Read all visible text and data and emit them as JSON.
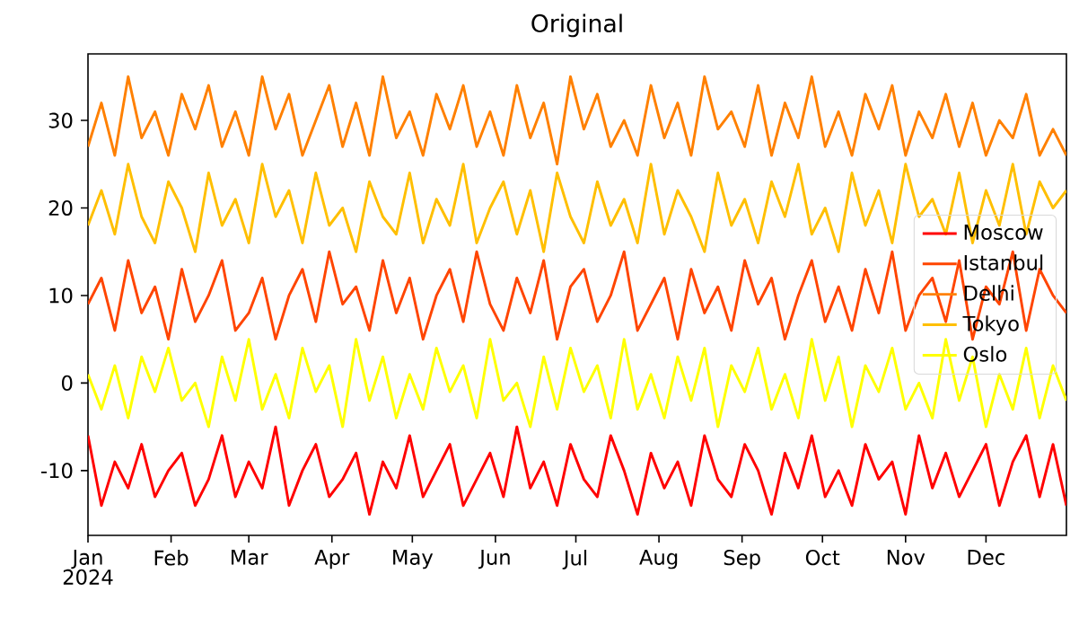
{
  "chart_data": {
    "type": "line",
    "title": "Original",
    "x": [
      "2024-01-01",
      "2024-01-06",
      "2024-01-11",
      "2024-01-16",
      "2024-01-21",
      "2024-01-26",
      "2024-01-31",
      "2024-02-05",
      "2024-02-10",
      "2024-02-15",
      "2024-02-20",
      "2024-02-25",
      "2024-03-01",
      "2024-03-06",
      "2024-03-11",
      "2024-03-16",
      "2024-03-21",
      "2024-03-26",
      "2024-03-31",
      "2024-04-05",
      "2024-04-10",
      "2024-04-15",
      "2024-04-20",
      "2024-04-25",
      "2024-04-30",
      "2024-05-05",
      "2024-05-10",
      "2024-05-15",
      "2024-05-20",
      "2024-05-25",
      "2024-05-30",
      "2024-06-04",
      "2024-06-09",
      "2024-06-14",
      "2024-06-19",
      "2024-06-24",
      "2024-06-29",
      "2024-07-04",
      "2024-07-09",
      "2024-07-14",
      "2024-07-19",
      "2024-07-24",
      "2024-07-29",
      "2024-08-03",
      "2024-08-08",
      "2024-08-13",
      "2024-08-18",
      "2024-08-23",
      "2024-08-28",
      "2024-09-02",
      "2024-09-07",
      "2024-09-12",
      "2024-09-17",
      "2024-09-22",
      "2024-09-27",
      "2024-10-02",
      "2024-10-07",
      "2024-10-12",
      "2024-10-17",
      "2024-10-22",
      "2024-10-27",
      "2024-11-01",
      "2024-11-06",
      "2024-11-11",
      "2024-11-16",
      "2024-11-21",
      "2024-11-26",
      "2024-12-01",
      "2024-12-06",
      "2024-12-11",
      "2024-12-16",
      "2024-12-21",
      "2024-12-26",
      "2024-12-31"
    ],
    "series": [
      {
        "name": "Moscow",
        "color": "#ff0000",
        "values": [
          -6,
          -14,
          -9,
          -12,
          -7,
          -13,
          -10,
          -8,
          -14,
          -11,
          -6,
          -13,
          -9,
          -12,
          -5,
          -14,
          -10,
          -7,
          -13,
          -11,
          -8,
          -15,
          -9,
          -12,
          -6,
          -13,
          -10,
          -7,
          -14,
          -11,
          -8,
          -13,
          -5,
          -12,
          -9,
          -14,
          -7,
          -11,
          -13,
          -6,
          -10,
          -15,
          -8,
          -12,
          -9,
          -14,
          -6,
          -11,
          -13,
          -7,
          -10,
          -15,
          -8,
          -12,
          -6,
          -13,
          -10,
          -14,
          -7,
          -11,
          -9,
          -15,
          -6,
          -12,
          -8,
          -13,
          -10,
          -7,
          -14,
          -9,
          -6,
          -13,
          -7,
          -14
        ]
      },
      {
        "name": "Istanbul",
        "color": "#ff4500",
        "values": [
          9,
          12,
          6,
          14,
          8,
          11,
          5,
          13,
          7,
          10,
          14,
          6,
          8,
          12,
          5,
          10,
          13,
          7,
          15,
          9,
          11,
          6,
          14,
          8,
          12,
          5,
          10,
          13,
          7,
          15,
          9,
          6,
          12,
          8,
          14,
          5,
          11,
          13,
          7,
          10,
          15,
          6,
          9,
          12,
          5,
          13,
          8,
          11,
          6,
          14,
          9,
          12,
          5,
          10,
          14,
          7,
          11,
          6,
          13,
          8,
          15,
          6,
          10,
          12,
          7,
          14,
          5,
          11,
          9,
          15,
          6,
          13,
          10,
          8
        ]
      },
      {
        "name": "Delhi",
        "color": "#ff8000",
        "values": [
          27,
          32,
          26,
          35,
          28,
          31,
          26,
          33,
          29,
          34,
          27,
          31,
          26,
          35,
          29,
          33,
          26,
          30,
          34,
          27,
          32,
          26,
          35,
          28,
          31,
          26,
          33,
          29,
          34,
          27,
          31,
          26,
          34,
          28,
          32,
          25,
          35,
          29,
          33,
          27,
          30,
          26,
          34,
          28,
          32,
          26,
          35,
          29,
          31,
          27,
          34,
          26,
          32,
          28,
          35,
          27,
          31,
          26,
          33,
          29,
          34,
          26,
          31,
          28,
          33,
          27,
          32,
          26,
          30,
          28,
          33,
          26,
          29,
          26
        ]
      },
      {
        "name": "Tokyo",
        "color": "#ffbf00",
        "values": [
          18,
          22,
          17,
          25,
          19,
          16,
          23,
          20,
          15,
          24,
          18,
          21,
          16,
          25,
          19,
          22,
          16,
          24,
          18,
          20,
          15,
          23,
          19,
          17,
          24,
          16,
          21,
          18,
          25,
          16,
          20,
          23,
          17,
          22,
          15,
          24,
          19,
          16,
          23,
          18,
          21,
          16,
          25,
          17,
          22,
          19,
          15,
          24,
          18,
          21,
          16,
          23,
          19,
          25,
          17,
          20,
          15,
          24,
          18,
          22,
          16,
          25,
          19,
          21,
          17,
          24,
          16,
          22,
          18,
          25,
          17,
          23,
          20,
          22
        ]
      },
      {
        "name": "Oslo",
        "color": "#ffff00",
        "values": [
          1,
          -3,
          2,
          -4,
          3,
          -1,
          4,
          -2,
          0,
          -5,
          3,
          -2,
          5,
          -3,
          1,
          -4,
          4,
          -1,
          2,
          -5,
          5,
          -2,
          3,
          -4,
          1,
          -3,
          4,
          -1,
          2,
          -4,
          5,
          -2,
          0,
          -5,
          3,
          -3,
          4,
          -1,
          2,
          -4,
          5,
          -3,
          1,
          -4,
          3,
          -2,
          4,
          -5,
          2,
          -1,
          4,
          -3,
          1,
          -4,
          5,
          -2,
          3,
          -5,
          2,
          -1,
          4,
          -3,
          0,
          -4,
          5,
          -2,
          3,
          -5,
          1,
          -3,
          4,
          -4,
          2,
          -2
        ]
      }
    ],
    "xlim": [
      "2024-01-01",
      "2024-12-31"
    ],
    "xticks": [
      {
        "value": "2024-01-01",
        "label": "Jan"
      },
      {
        "value": "2024-02-01",
        "label": "Feb"
      },
      {
        "value": "2024-03-01",
        "label": "Mar"
      },
      {
        "value": "2024-04-01",
        "label": "Apr"
      },
      {
        "value": "2024-05-01",
        "label": "May"
      },
      {
        "value": "2024-06-01",
        "label": "Jun"
      },
      {
        "value": "2024-07-01",
        "label": "Jul"
      },
      {
        "value": "2024-08-01",
        "label": "Aug"
      },
      {
        "value": "2024-09-01",
        "label": "Sep"
      },
      {
        "value": "2024-10-01",
        "label": "Oct"
      },
      {
        "value": "2024-11-01",
        "label": "Nov"
      },
      {
        "value": "2024-12-01",
        "label": "Dec"
      }
    ],
    "ylim": [
      -17.4,
      37.6
    ],
    "yticks": [
      -10,
      0,
      10,
      20,
      30
    ],
    "annotations": [
      "2024"
    ],
    "legend": "right",
    "line_style": "solid",
    "marker": "none",
    "grid": false
  }
}
